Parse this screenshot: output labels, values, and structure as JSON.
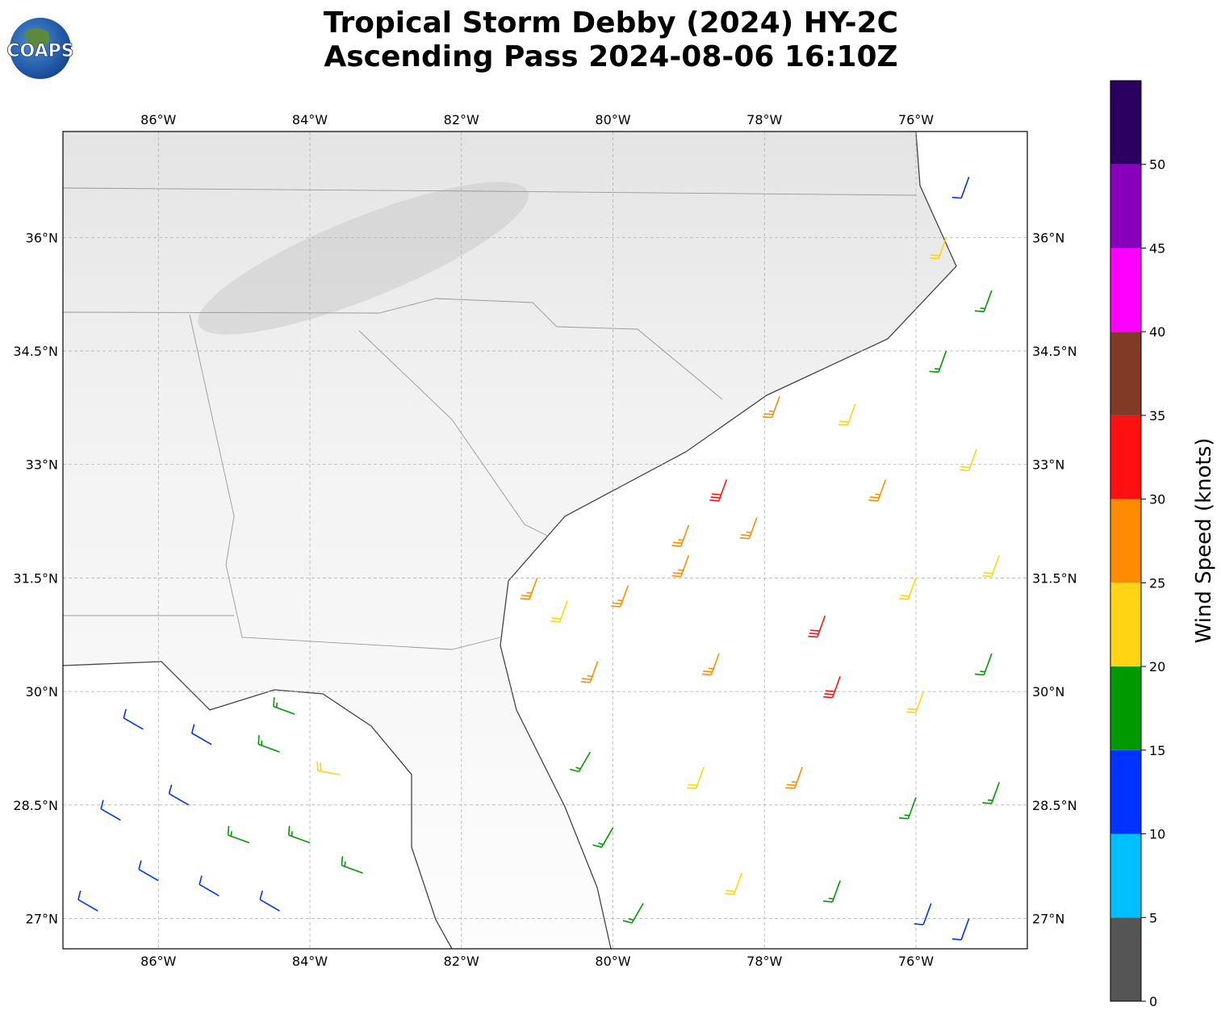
{
  "logo": "COAPS",
  "chart_data": {
    "type": "barbs",
    "title": [
      "Tropical Storm Debby (2024) HY-2C",
      "Ascending Pass 2024-08-06 16:10Z"
    ],
    "xlim": [
      -87.26,
      -74.53
    ],
    "ylim": [
      26.6,
      37.4
    ],
    "xticks": [
      {
        "value": -86,
        "label": "86°W"
      },
      {
        "value": -84,
        "label": "84°W"
      },
      {
        "value": -82,
        "label": "82°W"
      },
      {
        "value": -80,
        "label": "80°W"
      },
      {
        "value": -78,
        "label": "78°W"
      },
      {
        "value": -76,
        "label": "76°W"
      }
    ],
    "yticks": [
      {
        "value": 27,
        "label": "27°N"
      },
      {
        "value": 28.5,
        "label": "28.5°N"
      },
      {
        "value": 30,
        "label": "30°N"
      },
      {
        "value": 31.5,
        "label": "31.5°N"
      },
      {
        "value": 33,
        "label": "33°N"
      },
      {
        "value": 34.5,
        "label": "34.5°N"
      },
      {
        "value": 36,
        "label": "36°N"
      }
    ],
    "grid": true,
    "colorbar": {
      "label": "Wind Speed (knots)",
      "bounds": [
        0,
        5,
        10,
        15,
        20,
        25,
        30,
        35,
        40,
        45,
        50,
        55
      ],
      "colors": [
        "#555555",
        "#00bfff",
        "#0033ff",
        "#009900",
        "#ffd414",
        "#ff8c00",
        "#ff1010",
        "#803a26",
        "#ff00ff",
        "#8800bb",
        "#2a0060"
      ],
      "ticks": [
        0,
        5,
        10,
        15,
        20,
        25,
        30,
        35,
        40,
        45,
        50
      ]
    },
    "lon": [
      -86.8,
      -86,
      -85.2,
      -84.4,
      -86.5,
      -85.6,
      -84.8,
      -84.0,
      -83.3,
      -86.2,
      -85.3,
      -84.4,
      -83.6,
      -84.2,
      -80.6,
      -80.2,
      -80.3,
      -80,
      -79.6,
      -79,
      -78.5,
      -78.1,
      -78.6,
      -78.8,
      -78.3,
      -77.2,
      -77,
      -77.5,
      -77.0,
      -76.4,
      -76,
      -75.9,
      -76,
      -75.8,
      -76.8,
      -75.6,
      -75.2,
      -74.9,
      -75.0,
      -74.9,
      -75.3,
      -75.6,
      -75.3,
      -75.0,
      -77.8,
      -79.0,
      -79.8,
      -81
    ],
    "lat": [
      27.1,
      27.5,
      27.3,
      27.1,
      28.3,
      28.5,
      28.0,
      28.0,
      27.6,
      29.5,
      29.3,
      29.2,
      28.9,
      29.7,
      31.2,
      30.4,
      29.2,
      28.2,
      27.2,
      31.8,
      32.8,
      32.3,
      30.5,
      29.0,
      27.6,
      31.0,
      30.2,
      29.0,
      27.5,
      32.8,
      31.5,
      30.0,
      28.6,
      27.2,
      33.8,
      34.5,
      33.2,
      31.8,
      30.5,
      28.8,
      27.0,
      36.0,
      36.8,
      35.3,
      33.9,
      32.2,
      31.4,
      31.5
    ],
    "speed": [
      12,
      12,
      13,
      12,
      11,
      12,
      16,
      17,
      18,
      12,
      13,
      17,
      22,
      18,
      24,
      26,
      17,
      16,
      19,
      29,
      31,
      28,
      27,
      24,
      22,
      32,
      31,
      27,
      18,
      26,
      23,
      22,
      19,
      14,
      22,
      18,
      23,
      24,
      18,
      17,
      12,
      24,
      12,
      18,
      27,
      26,
      27,
      25
    ],
    "direction": [
      300,
      300,
      300,
      300,
      300,
      300,
      290,
      290,
      290,
      300,
      300,
      290,
      280,
      290,
      200,
      200,
      210,
      210,
      210,
      200,
      200,
      200,
      200,
      200,
      200,
      200,
      200,
      200,
      200,
      200,
      200,
      200,
      200,
      200,
      200,
      200,
      200,
      200,
      200,
      200,
      200,
      200,
      200,
      200,
      200,
      200,
      200,
      200
    ]
  }
}
